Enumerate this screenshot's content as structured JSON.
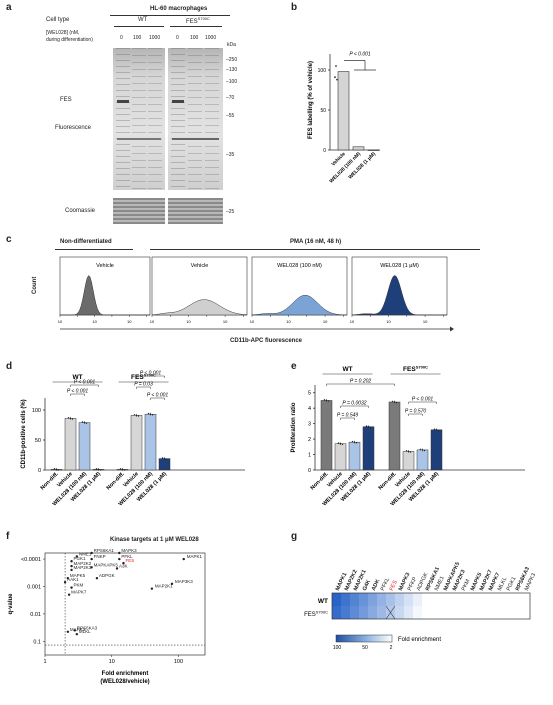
{
  "a": {
    "letter": "a",
    "title": "HL-60 macrophages",
    "cell_type_label": "Cell type",
    "wt": "WT",
    "fes_prefix": "FES",
    "fes_sup": "S700C",
    "conc_label_1": "[WEL028] (nM,",
    "conc_label_2": "during differentiation)",
    "concs": [
      "0",
      "100",
      "1000",
      "0",
      "100",
      "1000"
    ],
    "kda": "kDa",
    "markers": [
      "250",
      "130",
      "100",
      "70",
      "55",
      "35",
      "25"
    ],
    "fes_label": "FES",
    "fluorescence_label": "Fluorescence",
    "coomassie_label": "Coomassie"
  },
  "b": {
    "letter": "b",
    "ylabel": "FES labelling (% of vehicle)",
    "pval": "P < 0.001",
    "yticks": [
      "0",
      "50",
      "100"
    ],
    "categories": [
      "Vehicle",
      "WEL028 (100 nM)",
      "WEL028 (1 μM)"
    ],
    "values": [
      98,
      4,
      0
    ]
  },
  "c": {
    "letter": "c",
    "group1": "Non-differentiated",
    "group2": "PMA (16 nM, 48 h)",
    "ylabel": "Count",
    "xlabel": "CD11b-APC fluorescence",
    "panels": [
      "Vehicle",
      "Vehicle",
      "WEL028 (100 nM)",
      "WEL028 (1 μM)"
    ],
    "xticks": [
      "10",
      "10",
      "10",
      "10",
      "10",
      "10"
    ],
    "colors": [
      "#6b6b6b",
      "#cfcfcf",
      "#7ba3d6",
      "#1f3f7a"
    ]
  },
  "d": {
    "letter": "d",
    "ylabel": "CD11b-positive cells (%)",
    "wt": "WT",
    "fes_prefix": "FES",
    "fes_sup": "S700C",
    "yticks": [
      "0",
      "50",
      "100"
    ],
    "categories": [
      "Non-diff.",
      "Vehicle",
      "WEL028 (100 nM)",
      "WEL028 (1 μM)",
      "Non-diff.",
      "Vehicle",
      "WEL028 (100 nM)",
      "WEL028 (1 μM)"
    ],
    "values": [
      1,
      86,
      79,
      1,
      1,
      91,
      93,
      19
    ],
    "pvals": [
      "P < 0.001",
      "P < 0.001",
      "P < 0.001",
      "P = 0.03",
      "P < 0.001"
    ]
  },
  "e": {
    "letter": "e",
    "ylabel": "Proliferation ratio",
    "wt": "WT",
    "fes_prefix": "FES",
    "fes_sup": "S700C",
    "yticks": [
      "0",
      "1",
      "2",
      "3",
      "4",
      "5"
    ],
    "categories": [
      "Non-diff.",
      "Vehicle",
      "WEL028 (100 nM)",
      "WEL028 (1 μM)",
      "Non-diff.",
      "Vehicle",
      "WEL028 (100 nM)",
      "WEL028 (1 μM)"
    ],
    "values": [
      4.5,
      1.7,
      1.8,
      2.8,
      4.4,
      1.2,
      1.3,
      2.6
    ],
    "pvals": [
      "P = 0.202",
      "P = 0.0032",
      "P = 0.549",
      "P < 0.001",
      "P = 0.570"
    ]
  },
  "f": {
    "letter": "f",
    "title": "Kinase targets at 1 μM WEL028",
    "ylabel": "q-value",
    "xlabel_1": "Fold enrichment",
    "xlabel_2": "(WEL028/vehicle)",
    "yticks": [
      "<0.0001",
      "0.001",
      "0.01",
      "0.1"
    ],
    "xticks": [
      "1",
      "10",
      "100"
    ],
    "points": [
      {
        "label": "RPS6KA1",
        "fe": 5,
        "q": 6e-05
      },
      {
        "label": "NME1",
        "fe": 3,
        "q": 8e-05
      },
      {
        "label": "FNKP",
        "fe": 5,
        "q": 0.0001
      },
      {
        "label": "PGK1",
        "fe": 2.5,
        "q": 0.00012
      },
      {
        "label": "MAPK3",
        "fe": 13,
        "q": 6e-05
      },
      {
        "label": "PFKL",
        "fe": 13,
        "q": 0.0001
      },
      {
        "label": "FES",
        "fe": 15,
        "q": 0.00014
      },
      {
        "label": "MAPK1",
        "fe": 120,
        "q": 0.0001
      },
      {
        "label": "MAP2K2",
        "fe": 2.5,
        "q": 0.00018
      },
      {
        "label": "MAPKAPK5",
        "fe": 5,
        "q": 0.0002
      },
      {
        "label": "A3K",
        "fe": 12,
        "q": 0.00022
      },
      {
        "label": "MAP2K3",
        "fe": 2.5,
        "q": 0.00025
      },
      {
        "label": "ADPGK",
        "fe": 6,
        "q": 0.0005
      },
      {
        "label": "MAPK5",
        "fe": 2.2,
        "q": 0.0005
      },
      {
        "label": "AAK1",
        "fe": 2,
        "q": 0.0007
      },
      {
        "label": "MAP2K1",
        "fe": 40,
        "q": 0.0012
      },
      {
        "label": "MAP3K3",
        "fe": 80,
        "q": 0.0008
      },
      {
        "label": "PKM",
        "fe": 2.5,
        "q": 0.0011
      },
      {
        "label": "MAPK7",
        "fe": 2.3,
        "q": 0.002
      },
      {
        "label": "RPS6KA3",
        "fe": 2.8,
        "q": 0.04
      },
      {
        "label": "MAPK3",
        "fe": 2.2,
        "q": 0.045
      },
      {
        "label": "MLKL",
        "fe": 3,
        "q": 0.055
      }
    ]
  },
  "g": {
    "letter": "g",
    "row_wt": "WT",
    "row_fes_prefix": "FES",
    "row_fes_sup": "S700C",
    "kinases": [
      "MAPK1",
      "MAP2K2",
      "MAP2K1",
      "G4K",
      "ADK",
      "PFKL",
      "FES",
      "MAPK3",
      "PFKP",
      "ADPGK",
      "RPS6KA1",
      "NME1",
      "MAPKAPK5",
      "MAP2K3",
      "PKM",
      "MAPK5",
      "MAP2K7",
      "MAPK7",
      "MLKL",
      "PGK1",
      "RPS6KA3",
      "MAPK3"
    ],
    "legend_label": "Fold enrichment",
    "legend_ticks": [
      "100",
      "50",
      "2"
    ]
  }
}
